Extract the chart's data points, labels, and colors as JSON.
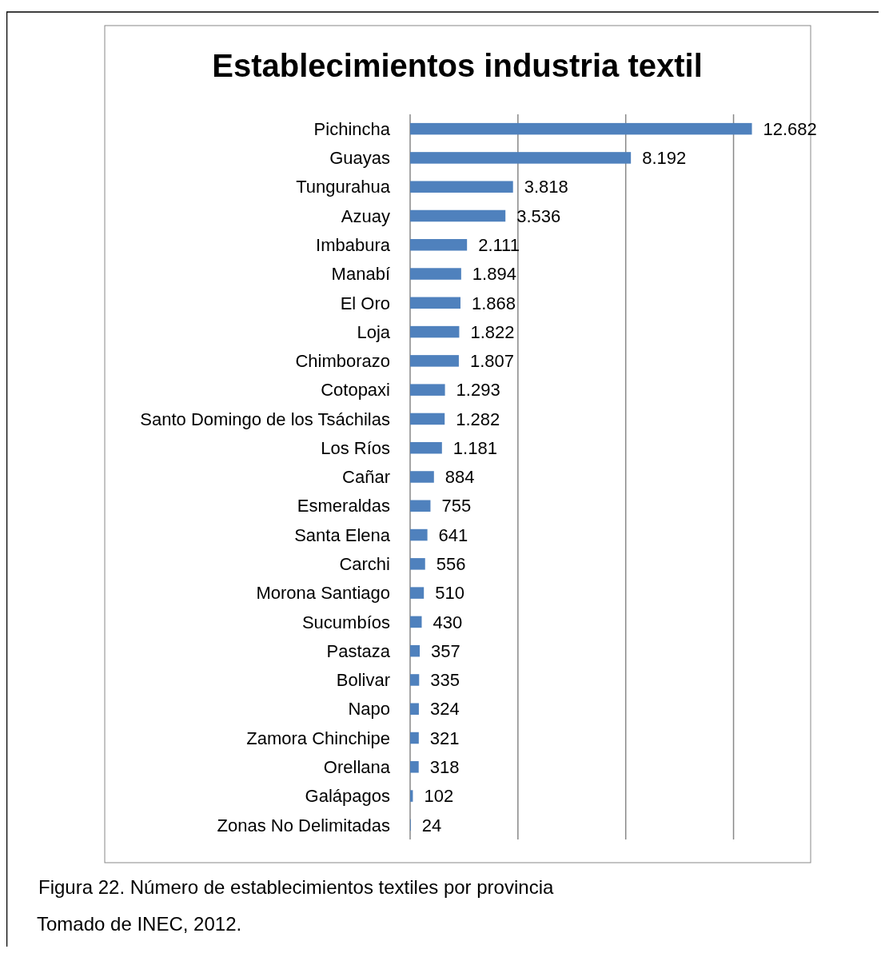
{
  "chart_data": {
    "type": "bar",
    "orientation": "horizontal",
    "title": "Establecimientos industria textil",
    "categories": [
      "Pichincha",
      "Guayas",
      "Tungurahua",
      "Azuay",
      "Imbabura",
      "Manabí",
      "El Oro",
      "Loja",
      "Chimborazo",
      "Cotopaxi",
      "Santo Domingo de los Tsáchilas",
      "Los Ríos",
      "Cañar",
      "Esmeraldas",
      "Santa Elena",
      "Carchi",
      "Morona Santiago",
      "Sucumbíos",
      "Pastaza",
      "Bolivar",
      "Napo",
      "Zamora Chinchipe",
      "Orellana",
      "Galápagos",
      "Zonas No Delimitadas"
    ],
    "values": [
      12682,
      8192,
      3818,
      3536,
      2111,
      1894,
      1868,
      1822,
      1807,
      1293,
      1282,
      1181,
      884,
      755,
      641,
      556,
      510,
      430,
      357,
      335,
      324,
      321,
      318,
      102,
      24
    ],
    "value_labels": [
      "12.682",
      "8.192",
      "3.818",
      "3.536",
      "2.111",
      "1.894",
      "1.868",
      "1.822",
      "1.807",
      "1.293",
      "1.282",
      "1.181",
      "884",
      "755",
      "641",
      "556",
      "510",
      "430",
      "357",
      "335",
      "324",
      "321",
      "318",
      "102",
      "24"
    ],
    "color": "#4f81bd",
    "xticks": [
      {
        "value": 0,
        "label": null
      },
      {
        "value": 4000,
        "label": null
      },
      {
        "value": 8000,
        "label": null
      },
      {
        "value": 12000,
        "label": null
      }
    ],
    "tick_labels": "y",
    "grid": "x",
    "annotations": [
      "Figura 22. Número de establecimientos textiles por provincia",
      "Tomado de INEC, 2012."
    ]
  }
}
